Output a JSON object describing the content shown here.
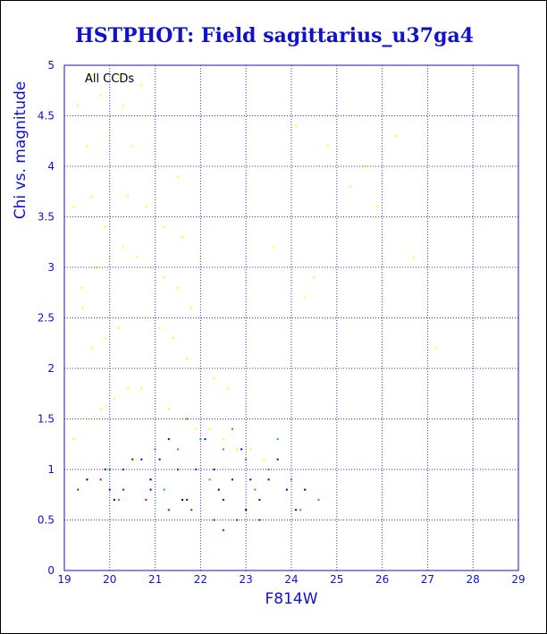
{
  "chart_data": {
    "type": "scatter",
    "title": "HSTPHOT: Field sagittarius_u37ga4",
    "xlabel": "F814W",
    "ylabel": "Chi vs. magnitude",
    "annotation": "All CCDs",
    "xlim": [
      19,
      29
    ],
    "ylim": [
      0,
      5
    ],
    "x_ticks": [
      19,
      20,
      21,
      22,
      23,
      24,
      25,
      26,
      27,
      28,
      29
    ],
    "y_ticks": [
      0,
      0.5,
      1,
      1.5,
      2,
      2.5,
      3,
      3.5,
      4,
      4.5,
      5
    ],
    "grid": true,
    "colors": {
      "title": "#1010d0",
      "axes": "#1010d0",
      "grid": "#3030e0",
      "frame": "#000000"
    },
    "series": [
      {
        "color": "#ffff00",
        "x": [
          19.2,
          19.5,
          19.8,
          20.1,
          20.4,
          20.7,
          21.0,
          21.3,
          21.6,
          21.9,
          22.2,
          22.5,
          22.8,
          23.1,
          23.4,
          19.3,
          19.6,
          19.9,
          20.2,
          20.5,
          20.8,
          21.1,
          21.4,
          21.7,
          22.0,
          22.3,
          22.6,
          19.4,
          19.7,
          20.0,
          20.3,
          20.6,
          20.9,
          21.2,
          21.5,
          21.8,
          19.2,
          19.6,
          20.0,
          20.4,
          20.8,
          21.2,
          21.6,
          22.0,
          19.5,
          20.0,
          20.5,
          21.0,
          21.5,
          19.3,
          19.8,
          20.3,
          20.8,
          19.6,
          20.2,
          20.7,
          19.4,
          19.9,
          24.1,
          24.8,
          25.3,
          25.9,
          26.3,
          26.7,
          27.2,
          24.5,
          25.6,
          26.1,
          23.6,
          24.3
        ],
        "y": [
          1.3,
          1.5,
          1.6,
          1.7,
          1.8,
          1.8,
          1.7,
          1.6,
          1.5,
          1.4,
          1.4,
          1.3,
          1.2,
          1.2,
          1.1,
          2.0,
          2.2,
          2.3,
          2.4,
          2.5,
          2.5,
          2.4,
          2.3,
          2.1,
          2.0,
          1.9,
          1.8,
          2.8,
          3.0,
          3.1,
          3.2,
          3.1,
          3.0,
          2.9,
          2.8,
          2.6,
          3.6,
          3.7,
          3.8,
          3.7,
          3.6,
          3.4,
          3.3,
          3.1,
          4.2,
          4.3,
          4.2,
          4.0,
          3.9,
          4.6,
          4.7,
          4.6,
          4.5,
          4.9,
          4.9,
          4.8,
          2.6,
          3.4,
          4.4,
          4.2,
          3.8,
          3.6,
          4.3,
          3.1,
          2.2,
          2.9,
          4.0,
          2.5,
          3.2,
          2.7
        ]
      },
      {
        "color": "#00d000",
        "x": [
          19.5,
          20.0,
          20.5,
          21.0,
          21.5,
          22.0,
          22.5,
          23.0,
          23.5,
          24.0,
          24.3,
          24.6,
          20.2,
          21.2,
          22.2,
          23.2,
          24.2,
          21.7,
          22.7,
          23.7
        ],
        "y": [
          0.9,
          1.0,
          1.1,
          1.2,
          1.2,
          1.3,
          1.2,
          1.1,
          1.0,
          0.9,
          0.8,
          0.7,
          0.7,
          0.8,
          0.9,
          0.8,
          0.6,
          1.5,
          1.4,
          1.3
        ]
      },
      {
        "color": "#0000e0",
        "x": [
          19.5,
          19.9,
          20.3,
          20.7,
          21.1,
          21.5,
          21.9,
          22.3,
          22.7,
          23.1,
          23.5,
          23.9,
          24.3,
          20.1,
          20.9,
          21.7,
          22.5,
          23.3,
          24.1,
          21.3,
          22.1,
          22.9,
          23.7
        ],
        "y": [
          0.9,
          1.0,
          1.0,
          1.1,
          1.1,
          1.0,
          1.0,
          1.0,
          0.9,
          0.9,
          0.9,
          0.8,
          0.8,
          0.7,
          0.8,
          0.7,
          0.7,
          0.7,
          0.6,
          1.3,
          1.3,
          1.2,
          1.1
        ]
      },
      {
        "color": "#e00000",
        "x": [
          19.3,
          19.8,
          20.3,
          20.8,
          21.3,
          21.8,
          22.3,
          22.8,
          23.3,
          20.5,
          21.5,
          22.5
        ],
        "y": [
          0.8,
          0.9,
          0.8,
          0.7,
          0.6,
          0.6,
          0.5,
          0.5,
          0.5,
          1.1,
          1.0,
          0.4
        ]
      },
      {
        "color": "#000000",
        "x": [
          20.0,
          20.9,
          21.6,
          22.4,
          23.0
        ],
        "y": [
          0.8,
          0.9,
          0.7,
          0.8,
          0.6
        ]
      }
    ]
  }
}
